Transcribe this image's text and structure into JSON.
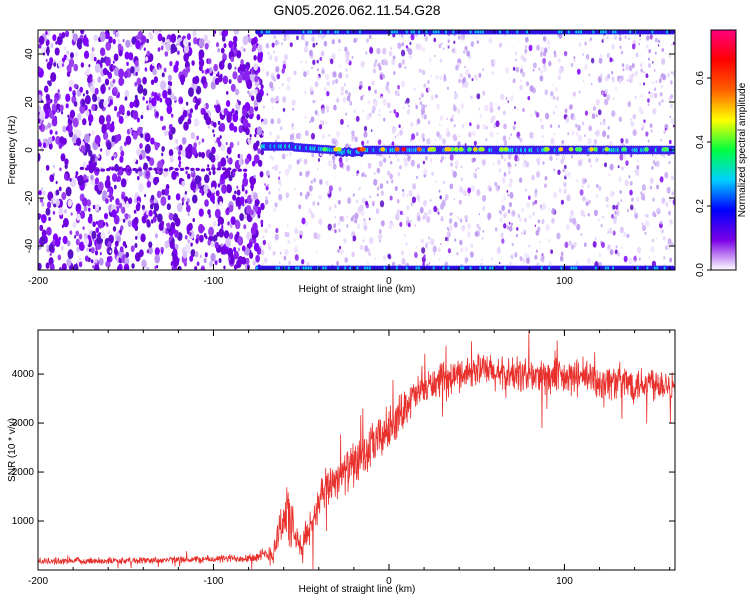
{
  "figure": {
    "title": "GN05.2026.062.11.54.G28"
  },
  "chart_data": [
    {
      "type": "heatmap",
      "title": "GN05.2026.062.11.54.G28",
      "xlabel": "Height of straight line (km)",
      "ylabel": "Frequency (Hz)",
      "xlim": [
        -200,
        163
      ],
      "ylim": [
        -50,
        50
      ],
      "xticks": [
        -200,
        -100,
        0,
        100
      ],
      "xtick_labels": [
        "-200",
        "-100",
        "0",
        "100"
      ],
      "yticks": [
        -40,
        -20,
        0,
        20,
        40
      ],
      "ytick_labels": [
        "-40",
        "-20",
        "0",
        "20",
        "40"
      ],
      "colorbar": {
        "label": "Normalized spectral amplitude",
        "range": [
          0,
          0.75
        ],
        "ticks": [
          0,
          0.2,
          0.4,
          0.6
        ],
        "tick_labels": [
          "0.0",
          "0.2",
          "0.4",
          "0.6"
        ],
        "colors": [
          "#ffffff",
          "#7a00e6",
          "#0000ff",
          "#00d0ff",
          "#00ff40",
          "#ffff00",
          "#ff6000",
          "#ff0000",
          "#ff0080"
        ]
      },
      "features": [
        {
          "name": "noise region",
          "x_range": [
            -200,
            -72
          ]
        },
        {
          "name": "signal line near 0 Hz",
          "x_range": [
            -72,
            163
          ],
          "frequency_hz": 0
        },
        {
          "name": "aliased lines near ±50 Hz",
          "x_range": [
            -75,
            163
          ],
          "frequency_hz": [
            50,
            -50
          ]
        },
        {
          "name": "weak line",
          "x_range": [
            -175,
            -80
          ],
          "frequency_hz": -8
        }
      ]
    },
    {
      "type": "line",
      "xlabel": "Height of straight line (km)",
      "ylabel": "SNR (10 * v/v)",
      "xlim": [
        -200,
        163
      ],
      "ylim": [
        0,
        4900
      ],
      "xticks": [
        -200,
        -100,
        0,
        100
      ],
      "xtick_labels": [
        "-200",
        "-100",
        "0",
        "100"
      ],
      "yticks": [
        1000,
        2000,
        3000,
        4000
      ],
      "ytick_labels": [
        "1000",
        "2000",
        "3000",
        "4000"
      ],
      "series": [
        {
          "name": "SNR",
          "color": "#e8302c",
          "x": [
            -200,
            -150,
            -100,
            -75,
            -66,
            -62,
            -58,
            -54,
            -50,
            -45,
            -40,
            -35,
            -30,
            -25,
            -20,
            -15,
            -10,
            -5,
            0,
            5,
            10,
            15,
            20,
            25,
            30,
            35,
            40,
            45,
            50,
            55,
            60,
            65,
            70,
            75,
            80,
            90,
            100,
            110,
            120,
            130,
            140,
            150,
            160,
            163
          ],
          "y": [
            180,
            190,
            220,
            260,
            350,
            900,
            1200,
            700,
            400,
            900,
            1300,
            1700,
            1900,
            2000,
            2150,
            2250,
            2500,
            2700,
            2900,
            3100,
            3400,
            3550,
            3700,
            3800,
            3850,
            3900,
            4000,
            4050,
            4100,
            4080,
            4000,
            3950,
            3980,
            4000,
            3950,
            3950,
            3900,
            3950,
            3850,
            3850,
            3800,
            3850,
            3800,
            3750
          ],
          "noise": [
            80,
            80,
            90,
            120,
            300,
            500,
            800,
            500,
            350,
            450,
            500,
            500,
            500,
            500,
            550,
            550,
            550,
            550,
            550,
            500,
            450,
            450,
            400,
            400,
            400,
            400,
            400,
            400,
            400,
            400,
            450,
            450,
            450,
            450,
            450,
            450,
            450,
            450,
            450,
            450,
            450,
            450,
            400,
            400
          ]
        }
      ]
    }
  ]
}
